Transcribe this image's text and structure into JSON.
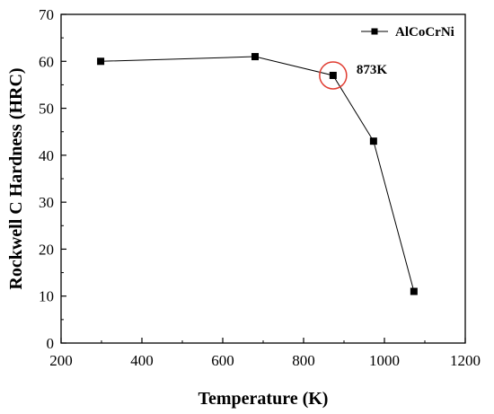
{
  "chart_data": {
    "type": "line",
    "xlabel": "Temperature (K)",
    "ylabel": "Rockwell C Hardness (HRC)",
    "xlim": [
      200,
      1200
    ],
    "ylim": [
      0,
      70
    ],
    "x_ticks": [
      200,
      400,
      600,
      800,
      1000,
      1200
    ],
    "y_ticks": [
      0,
      10,
      20,
      30,
      40,
      50,
      60,
      70
    ],
    "grid": false,
    "legend_position": "top-right",
    "series": [
      {
        "name": "AlCoCrNi",
        "x": [
          298,
          680,
          873,
          973,
          1073
        ],
        "y": [
          60,
          61,
          57,
          43,
          11
        ],
        "marker": "square",
        "color": "#000000"
      }
    ],
    "annotations": [
      {
        "text": "873K",
        "x": 873,
        "y": 57,
        "shape": "circle",
        "color": "#e03c31"
      }
    ]
  }
}
